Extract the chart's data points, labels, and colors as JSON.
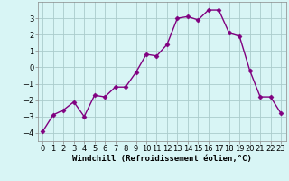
{
  "x": [
    0,
    1,
    2,
    3,
    4,
    5,
    6,
    7,
    8,
    9,
    10,
    11,
    12,
    13,
    14,
    15,
    16,
    17,
    18,
    19,
    20,
    21,
    22,
    23
  ],
  "y": [
    -3.9,
    -2.9,
    -2.6,
    -2.1,
    -3.0,
    -1.7,
    -1.8,
    -1.2,
    -1.2,
    -0.3,
    0.8,
    0.7,
    1.4,
    3.0,
    3.1,
    2.9,
    3.5,
    3.5,
    2.1,
    1.9,
    -0.2,
    -1.8,
    -1.8,
    -2.8
  ],
  "line_color": "#800080",
  "marker": "D",
  "markersize": 2.5,
  "linewidth": 1.0,
  "bg_color": "#d8f5f5",
  "grid_color": "#aacccc",
  "xlabel": "Windchill (Refroidissement éolien,°C)",
  "xlabel_fontsize": 6.5,
  "tick_fontsize": 6.0,
  "ylim": [
    -4.5,
    4.0
  ],
  "xlim": [
    -0.5,
    23.5
  ],
  "yticks": [
    -4,
    -3,
    -2,
    -1,
    0,
    1,
    2,
    3
  ],
  "xticks": [
    0,
    1,
    2,
    3,
    4,
    5,
    6,
    7,
    8,
    9,
    10,
    11,
    12,
    13,
    14,
    15,
    16,
    17,
    18,
    19,
    20,
    21,
    22,
    23
  ]
}
